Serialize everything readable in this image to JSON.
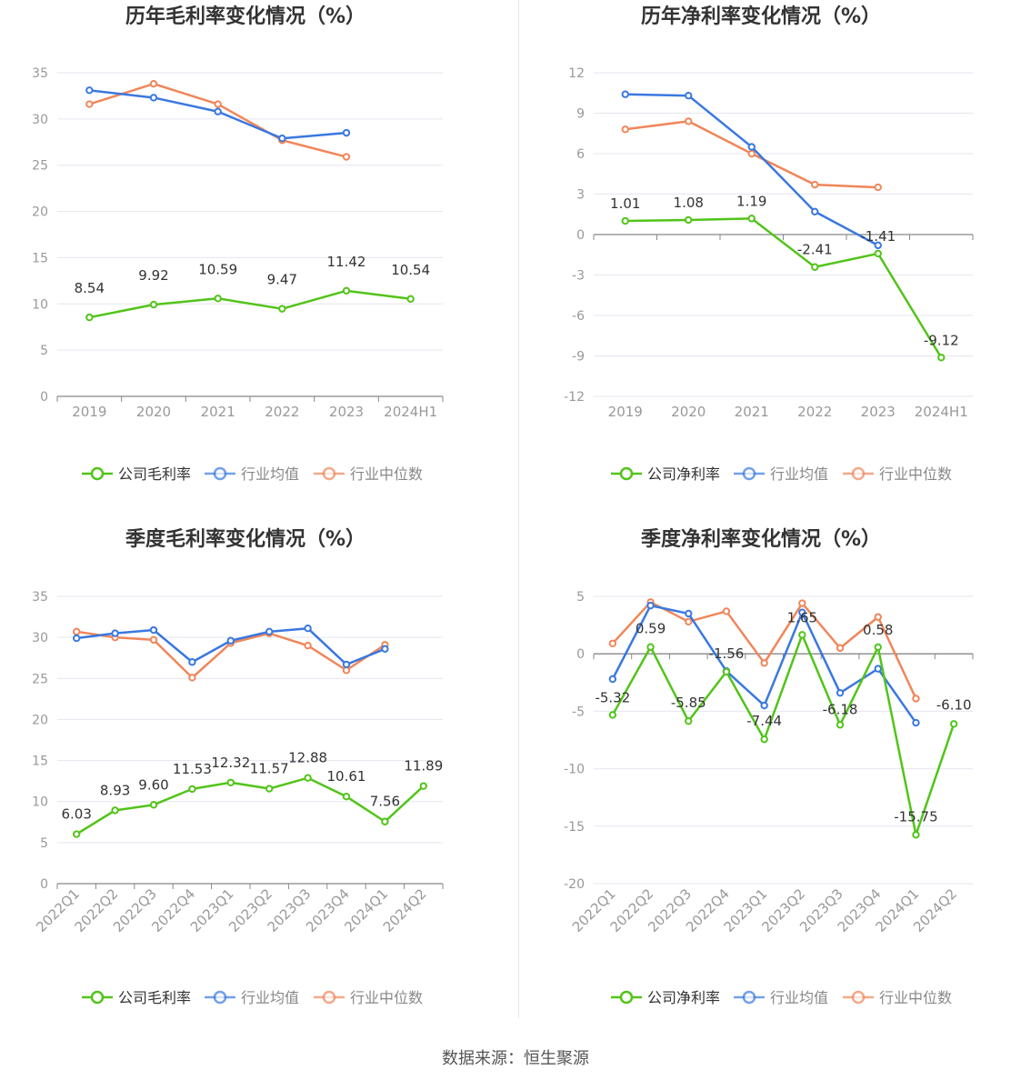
{
  "colors": {
    "company": "#52c41a",
    "avg": "#3a78e0",
    "median": "#f0865a",
    "grid": "#e6e6f0",
    "axis": "#888888",
    "text": "#333333",
    "tick": "#999999"
  },
  "source": "数据来源：恒生聚源",
  "chart_data": [
    {
      "type": "line",
      "title": "历年毛利率变化情况（%）",
      "categories": [
        "2019",
        "2020",
        "2021",
        "2022",
        "2023",
        "2024H1"
      ],
      "ylim": [
        0,
        35
      ],
      "yticks": [
        0,
        5,
        10,
        15,
        20,
        25,
        30,
        35
      ],
      "legend": [
        "公司毛利率",
        "行业均值",
        "行业中位数"
      ],
      "series": [
        {
          "name": "公司毛利率",
          "role": "company",
          "values": [
            8.54,
            9.92,
            10.59,
            9.47,
            11.42,
            10.54
          ],
          "labels": [
            "8.54",
            "9.92",
            "10.59",
            "9.47",
            "11.42",
            "10.54"
          ]
        },
        {
          "name": "行业均值",
          "role": "avg",
          "values": [
            33.1,
            32.3,
            30.8,
            27.9,
            28.5,
            null
          ]
        },
        {
          "name": "行业中位数",
          "role": "median",
          "values": [
            31.6,
            33.8,
            31.6,
            27.7,
            25.9,
            null
          ]
        }
      ]
    },
    {
      "type": "line",
      "title": "历年净利率变化情况（%）",
      "categories": [
        "2019",
        "2020",
        "2021",
        "2022",
        "2023",
        "2024H1"
      ],
      "ylim": [
        -12,
        12
      ],
      "yticks": [
        -12,
        -9,
        -6,
        -3,
        0,
        3,
        6,
        9,
        12
      ],
      "legend": [
        "公司净利率",
        "行业均值",
        "行业中位数"
      ],
      "series": [
        {
          "name": "公司净利率",
          "role": "company",
          "values": [
            1.01,
            1.08,
            1.19,
            -2.41,
            -1.41,
            -9.12
          ],
          "labels": [
            "1.01",
            "1.08",
            "1.19",
            "-2.41",
            "-1.41",
            "-9.12"
          ]
        },
        {
          "name": "行业均值",
          "role": "avg",
          "values": [
            10.4,
            10.3,
            6.5,
            1.7,
            -0.8,
            null
          ]
        },
        {
          "name": "行业中位数",
          "role": "median",
          "values": [
            7.8,
            8.4,
            6.0,
            3.7,
            3.5,
            null
          ]
        }
      ]
    },
    {
      "type": "line",
      "title": "季度毛利率变化情况（%）",
      "categories": [
        "2022Q1",
        "2022Q2",
        "2022Q3",
        "2022Q4",
        "2023Q1",
        "2023Q2",
        "2023Q3",
        "2023Q4",
        "2024Q1",
        "2024Q2"
      ],
      "ylim": [
        0,
        35
      ],
      "yticks": [
        0,
        5,
        10,
        15,
        20,
        25,
        30,
        35
      ],
      "legend": [
        "公司毛利率",
        "行业均值",
        "行业中位数"
      ],
      "series": [
        {
          "name": "公司毛利率",
          "role": "company",
          "values": [
            6.03,
            8.93,
            9.6,
            11.53,
            12.32,
            11.57,
            12.88,
            10.61,
            7.56,
            11.89
          ],
          "labels": [
            "6.03",
            "8.93",
            "9.60",
            "11.53",
            "12.32",
            "11.57",
            "12.88",
            "10.61",
            "7.56",
            "11.89"
          ]
        },
        {
          "name": "行业均值",
          "role": "avg",
          "values": [
            29.9,
            30.5,
            30.9,
            27.0,
            29.6,
            30.7,
            31.1,
            26.7,
            28.6,
            null
          ]
        },
        {
          "name": "行业中位数",
          "role": "median",
          "values": [
            30.7,
            30.0,
            29.7,
            25.1,
            29.3,
            30.5,
            29.0,
            26.0,
            29.1,
            null
          ]
        }
      ]
    },
    {
      "type": "line",
      "title": "季度净利率变化情况（%）",
      "categories": [
        "2022Q1",
        "2022Q2",
        "2022Q3",
        "2022Q4",
        "2023Q1",
        "2023Q2",
        "2023Q3",
        "2023Q4",
        "2024Q1",
        "2024Q2"
      ],
      "ylim": [
        -20,
        5
      ],
      "yticks": [
        -20,
        -15,
        -10,
        -5,
        0,
        5
      ],
      "legend": [
        "公司净利率",
        "行业均值",
        "行业中位数"
      ],
      "series": [
        {
          "name": "公司净利率",
          "role": "company",
          "values": [
            -5.32,
            0.59,
            -5.85,
            -1.56,
            -7.44,
            1.65,
            -6.18,
            0.58,
            -15.75,
            -6.1
          ],
          "labels": [
            "-5.32",
            "0.59",
            "-5.85",
            "-1.56",
            "-7.44",
            "1.65",
            "-6.18",
            "0.58",
            "-15.75",
            "-6.10"
          ]
        },
        {
          "name": "行业均值",
          "role": "avg",
          "values": [
            -2.2,
            4.2,
            3.5,
            -1.5,
            -4.5,
            3.6,
            -3.4,
            -1.3,
            -6.0,
            null
          ]
        },
        {
          "name": "行业中位数",
          "role": "median",
          "values": [
            0.9,
            4.5,
            2.8,
            3.7,
            -0.8,
            4.4,
            0.5,
            3.2,
            -3.9,
            null
          ]
        }
      ]
    }
  ]
}
